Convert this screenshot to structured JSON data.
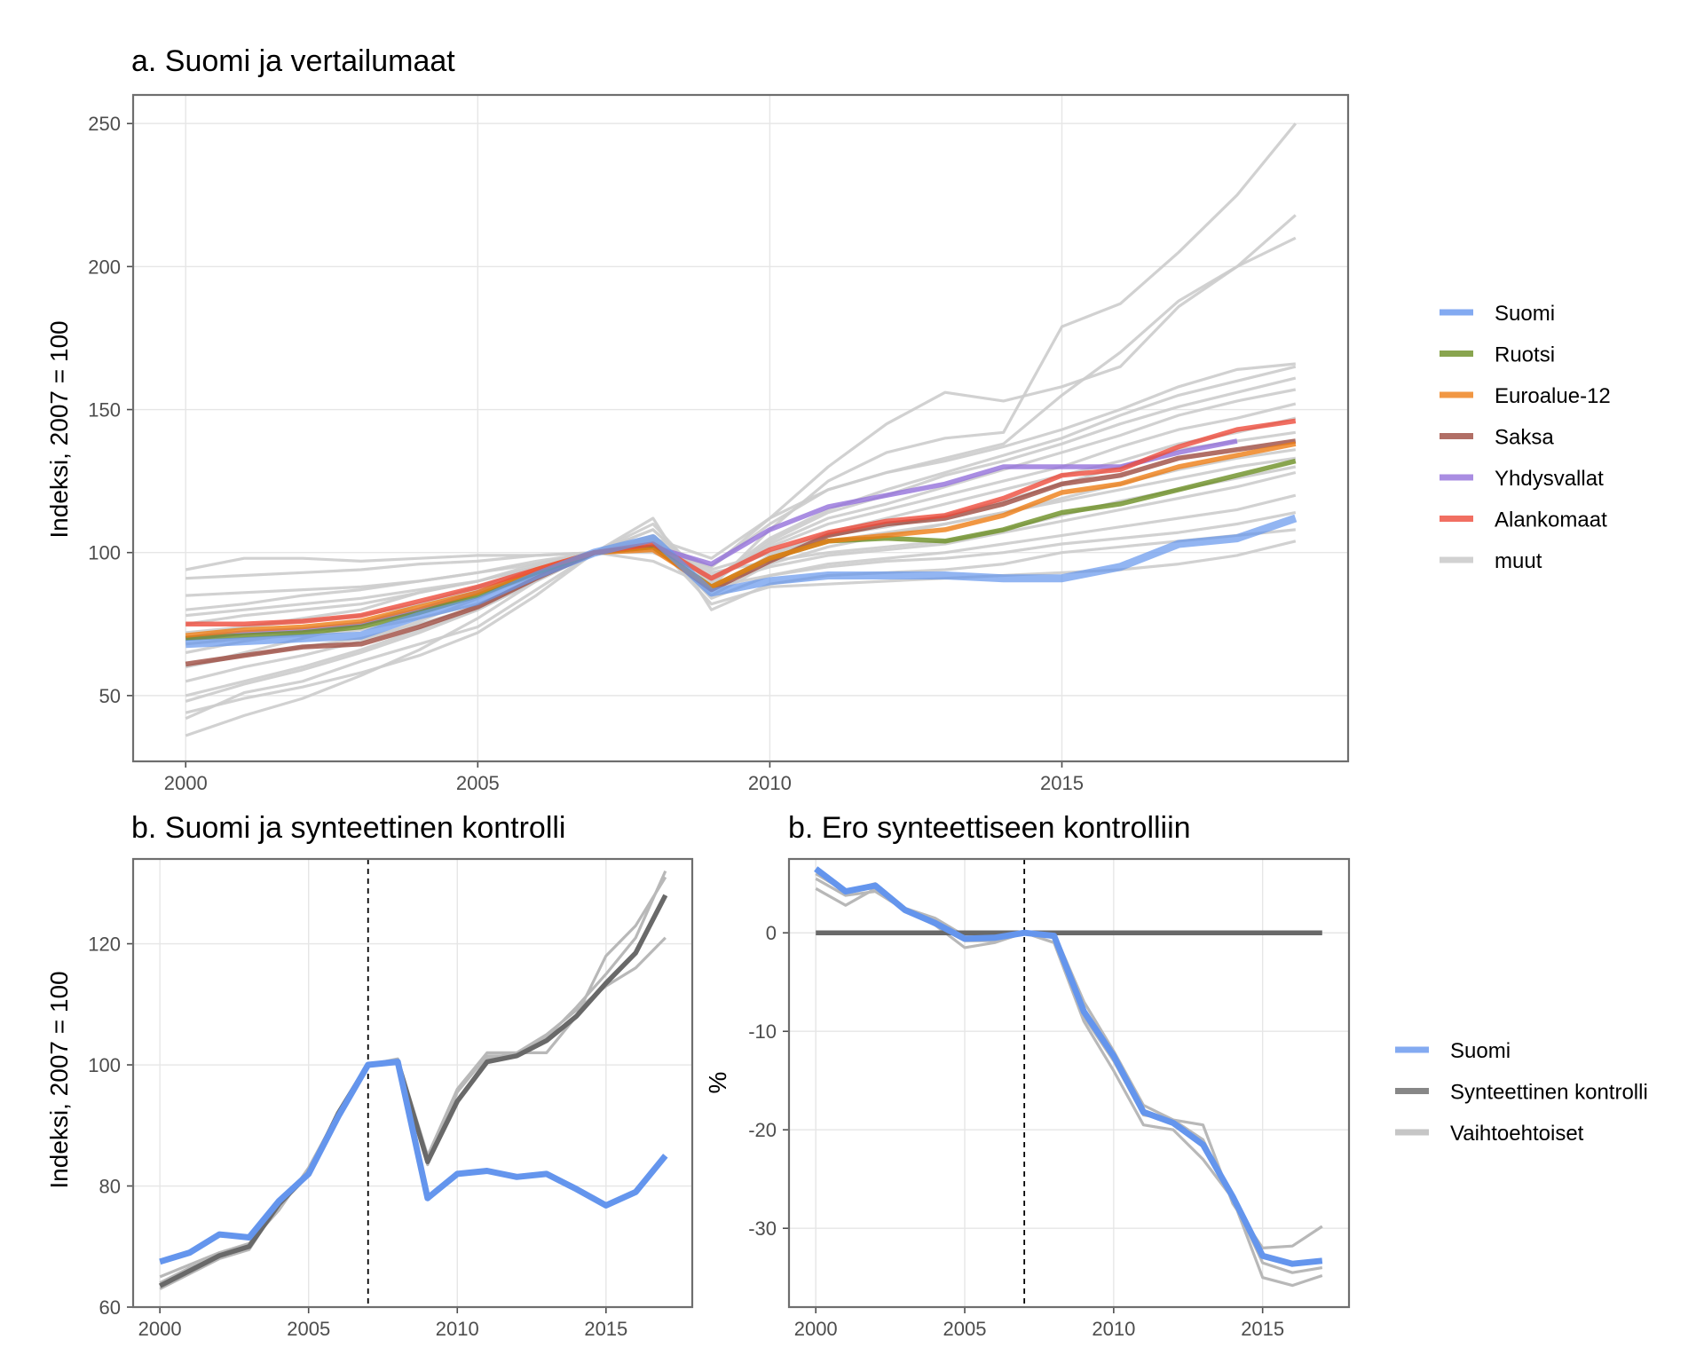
{
  "colors": {
    "Suomi": "#6495ED",
    "Ruotsi": "#6B8E23",
    "Euroalue-12": "#EE7D14",
    "Saksa": "#9E4B40",
    "Yhdysvallat": "#9370DB",
    "Alankomaat": "#EE4B3B",
    "muut": "#cccccc",
    "Synteettinen kontrolli": "#696969",
    "Vaihtoehtoiset": "#b8b8b8"
  },
  "chart_data": [
    {
      "id": "a",
      "type": "line",
      "title": "a. Suomi ja vertailumaat",
      "xlabel": "",
      "ylabel": "Indeksi, 2007 = 100",
      "xlim": [
        1999.1,
        2019.9
      ],
      "ylim": [
        27,
        260
      ],
      "xticks": [
        "2000",
        "2005",
        "2010",
        "2015"
      ],
      "yticks": [
        "50",
        "100",
        "150",
        "200",
        "250"
      ],
      "grid": true,
      "legend_position": "right",
      "legend": [
        "Suomi",
        "Ruotsi",
        "Euroalue-12",
        "Saksa",
        "Yhdysvallat",
        "Alankomaat",
        "muut"
      ],
      "x": [
        2000,
        2001,
        2002,
        2003,
        2004,
        2005,
        2006,
        2007,
        2008,
        2009,
        2010,
        2011,
        2012,
        2013,
        2014,
        2015,
        2016,
        2017,
        2018,
        2019
      ],
      "series": [
        {
          "name": "muut",
          "values": [
            94,
            98,
            98,
            97,
            98,
            99,
            99,
            100,
            105,
            98,
            112,
            130,
            145,
            156,
            153,
            158,
            165,
            186,
            200,
            210
          ]
        },
        {
          "name": "muut",
          "values": [
            42,
            51,
            55,
            62,
            68,
            74,
            87,
            100,
            110,
            88,
            108,
            125,
            135,
            140,
            142,
            179,
            187,
            205,
            225,
            250
          ]
        },
        {
          "name": "muut",
          "values": [
            91,
            92,
            93,
            94,
            96,
            97,
            99,
            100,
            104,
            95,
            112,
            122,
            128,
            133,
            138,
            155,
            170,
            188,
            200,
            218
          ]
        },
        {
          "name": "muut",
          "values": [
            80,
            82,
            85,
            87,
            90,
            93,
            97,
            100,
            102,
            95,
            110,
            122,
            128,
            132,
            137,
            143,
            150,
            158,
            164,
            166
          ]
        },
        {
          "name": "muut",
          "values": [
            36,
            43,
            49,
            57,
            66,
            77,
            90,
            100,
            106,
            90,
            105,
            115,
            122,
            128,
            134,
            140,
            148,
            155,
            160,
            165
          ]
        },
        {
          "name": "muut",
          "values": [
            60,
            65,
            70,
            75,
            82,
            88,
            95,
            100,
            101,
            89,
            104,
            114,
            120,
            127,
            132,
            138,
            145,
            151,
            156,
            161
          ]
        },
        {
          "name": "muut",
          "values": [
            48,
            54,
            59,
            65,
            72,
            80,
            90,
            100,
            108,
            90,
            103,
            112,
            117,
            123,
            129,
            135,
            141,
            148,
            153,
            157
          ]
        },
        {
          "name": "muut",
          "values": [
            70,
            74,
            77,
            80,
            86,
            90,
            96,
            100,
            102,
            91,
            102,
            110,
            115,
            120,
            125,
            130,
            137,
            143,
            147,
            152
          ]
        },
        {
          "name": "muut",
          "values": [
            55,
            60,
            64,
            69,
            76,
            84,
            93,
            100,
            104,
            87,
            99,
            107,
            112,
            117,
            122,
            127,
            132,
            138,
            142,
            147
          ]
        },
        {
          "name": "muut",
          "values": [
            75,
            78,
            80,
            82,
            86,
            90,
            95,
            100,
            100,
            92,
            100,
            106,
            109,
            113,
            118,
            124,
            130,
            136,
            139,
            142
          ]
        },
        {
          "name": "muut",
          "values": [
            85,
            86,
            87,
            88,
            90,
            93,
            96,
            100,
            103,
            94,
            100,
            104,
            107,
            110,
            114,
            119,
            124,
            129,
            133,
            136
          ]
        },
        {
          "name": "muut",
          "values": [
            65,
            69,
            72,
            75,
            80,
            85,
            92,
            100,
            103,
            85,
            96,
            102,
            106,
            110,
            114,
            118,
            122,
            126,
            130,
            133
          ]
        },
        {
          "name": "muut",
          "values": [
            72,
            74,
            76,
            78,
            82,
            87,
            93,
            100,
            102,
            93,
            97,
            100,
            102,
            104,
            108,
            113,
            118,
            122,
            126,
            130
          ]
        },
        {
          "name": "muut",
          "values": [
            50,
            55,
            60,
            66,
            73,
            80,
            90,
            100,
            108,
            89,
            95,
            99,
            101,
            103,
            107,
            111,
            115,
            119,
            123,
            128
          ]
        },
        {
          "name": "muut",
          "values": [
            78,
            80,
            82,
            84,
            87,
            90,
            95,
            100,
            97,
            88,
            92,
            96,
            98,
            100,
            103,
            106,
            109,
            112,
            115,
            120
          ]
        },
        {
          "name": "muut",
          "values": [
            60,
            64,
            67,
            70,
            75,
            81,
            90,
            100,
            105,
            84,
            92,
            95,
            97,
            98,
            100,
            103,
            105,
            107,
            110,
            114
          ]
        },
        {
          "name": "muut",
          "values": [
            44,
            49,
            53,
            58,
            64,
            72,
            85,
            100,
            112,
            80,
            89,
            92,
            93,
            94,
            96,
            100,
            102,
            104,
            106,
            108
          ]
        },
        {
          "name": "muut",
          "values": [
            68,
            70,
            71,
            73,
            77,
            82,
            90,
            100,
            104,
            82,
            88,
            89,
            90,
            91,
            92,
            93,
            94,
            96,
            99,
            104
          ]
        },
        {
          "name": "Yhdysvallat",
          "values": [
            70,
            72,
            73,
            75,
            80,
            86,
            93,
            100,
            102,
            96,
            108,
            116,
            120,
            124,
            130,
            130,
            130,
            135,
            139,
            null
          ]
        },
        {
          "name": "Saksa",
          "values": [
            61,
            64,
            67,
            68,
            74,
            81,
            91,
            100,
            102,
            87,
            97,
            106,
            110,
            112,
            117,
            124,
            127,
            133,
            136,
            139
          ]
        },
        {
          "name": "Ruotsi",
          "values": [
            70,
            71,
            72,
            74,
            79,
            85,
            93,
            100,
            102,
            88,
            98,
            104,
            105,
            104,
            108,
            114,
            117,
            122,
            127,
            132
          ]
        },
        {
          "name": "Euroalue-12",
          "values": [
            71,
            73,
            74,
            76,
            81,
            86,
            94,
            100,
            101,
            88,
            98,
            104,
            106,
            108,
            113,
            121,
            124,
            130,
            134,
            138
          ]
        },
        {
          "name": "Alankomaat",
          "values": [
            75,
            75,
            76,
            78,
            83,
            88,
            94,
            100,
            103,
            91,
            101,
            107,
            111,
            113,
            119,
            127,
            129,
            137,
            143,
            146
          ]
        },
        {
          "name": "Suomi",
          "values": [
            68,
            69,
            70,
            71,
            78,
            83,
            92,
            100,
            105,
            86,
            90,
            92,
            92,
            92,
            91,
            91,
            95,
            103,
            105,
            112
          ]
        }
      ]
    },
    {
      "id": "b1",
      "type": "line",
      "title": "b. Suomi ja synteettinen kontrolli",
      "xlabel": "",
      "ylabel": "Indeksi, 2007 = 100",
      "xlim": [
        1999.1,
        2017.9
      ],
      "ylim": [
        60,
        134
      ],
      "xticks": [
        "2000",
        "2005",
        "2010",
        "2015"
      ],
      "yticks": [
        "60",
        "80",
        "100",
        "120"
      ],
      "grid": true,
      "vline_x": 2007,
      "x": [
        2000,
        2001,
        2002,
        2003,
        2004,
        2005,
        2006,
        2007,
        2008,
        2009,
        2010,
        2011,
        2012,
        2013,
        2014,
        2015,
        2016,
        2017
      ],
      "series": [
        {
          "name": "Vaihtoehtoiset",
          "values": [
            65,
            67,
            69,
            70.5,
            76,
            83,
            92,
            100,
            101,
            85,
            96,
            102,
            102,
            102,
            108,
            118,
            123,
            131
          ]
        },
        {
          "name": "Vaihtoehtoiset",
          "values": [
            64,
            66.5,
            68.5,
            70,
            76.5,
            82.5,
            91.5,
            100,
            100.5,
            84,
            94,
            101,
            102,
            105,
            109,
            113,
            116,
            121
          ]
        },
        {
          "name": "Vaihtoehtoiset",
          "values": [
            63,
            65.5,
            68,
            69.5,
            77,
            82,
            92,
            100,
            100.5,
            83.5,
            95.5,
            101.5,
            101.5,
            104.5,
            109.5,
            115,
            121,
            132
          ]
        },
        {
          "name": "Synteettinen kontrolli",
          "values": [
            63.5,
            66,
            68.5,
            70,
            77,
            82,
            92,
            100,
            100.5,
            84,
            94,
            100.5,
            101.5,
            104,
            108,
            113.5,
            118.5,
            128
          ]
        },
        {
          "name": "Suomi",
          "values": [
            67.5,
            69,
            72,
            71.5,
            77.5,
            82,
            91.5,
            100,
            100.5,
            78,
            82,
            82.5,
            81.5,
            82,
            79.5,
            76.8,
            79,
            85
          ]
        }
      ]
    },
    {
      "id": "b2",
      "type": "line",
      "title": "b. Ero synteettiseen kontrolliin",
      "xlabel": "",
      "ylabel": "%",
      "xlim": [
        1999.1,
        2017.9
      ],
      "ylim": [
        -38,
        7.5
      ],
      "xticks": [
        "2000",
        "2005",
        "2010",
        "2015"
      ],
      "yticks": [
        "-30",
        "-20",
        "-10",
        "0"
      ],
      "grid": true,
      "vline_x": 2007,
      "legend_position": "right",
      "legend": [
        "Suomi",
        "Synteettinen kontrolli",
        "Vaihtoehtoiset"
      ],
      "x": [
        2000,
        2001,
        2002,
        2003,
        2004,
        2005,
        2006,
        2007,
        2008,
        2009,
        2010,
        2011,
        2012,
        2013,
        2014,
        2015,
        2016,
        2017
      ],
      "series": [
        {
          "name": "Vaihtoehtoiset",
          "values": [
            4.5,
            2.8,
            4.5,
            2.2,
            0.8,
            -1.5,
            -1,
            0,
            -1,
            -9,
            -14,
            -19.5,
            -20,
            -23,
            -27,
            -35,
            -35.8,
            -34.8
          ]
        },
        {
          "name": "Vaihtoehtoiset",
          "values": [
            5.5,
            3.8,
            4.2,
            2.3,
            0.8,
            -0.8,
            -0.8,
            0,
            -0.5,
            -8.5,
            -13,
            -18.5,
            -19,
            -19.5,
            -27.5,
            -32,
            -31.8,
            -29.8
          ]
        },
        {
          "name": "Vaihtoehtoiset",
          "values": [
            6,
            4.2,
            5,
            2.5,
            1.5,
            -0.3,
            -0.3,
            0,
            0,
            -7,
            -12,
            -17.5,
            -19,
            -21,
            -27,
            -33.5,
            -34.5,
            -34
          ]
        },
        {
          "name": "Synteettinen kontrolli",
          "values": [
            0,
            0,
            0,
            0,
            0,
            0,
            0,
            0,
            0,
            0,
            0,
            0,
            0,
            0,
            0,
            0,
            0,
            0
          ]
        },
        {
          "name": "Suomi",
          "values": [
            6.5,
            4.2,
            4.8,
            2.3,
            1,
            -0.6,
            -0.5,
            0,
            -0.3,
            -8,
            -12.5,
            -18.2,
            -19.3,
            -21.5,
            -26.8,
            -32.8,
            -33.6,
            -33.3
          ]
        }
      ]
    }
  ]
}
